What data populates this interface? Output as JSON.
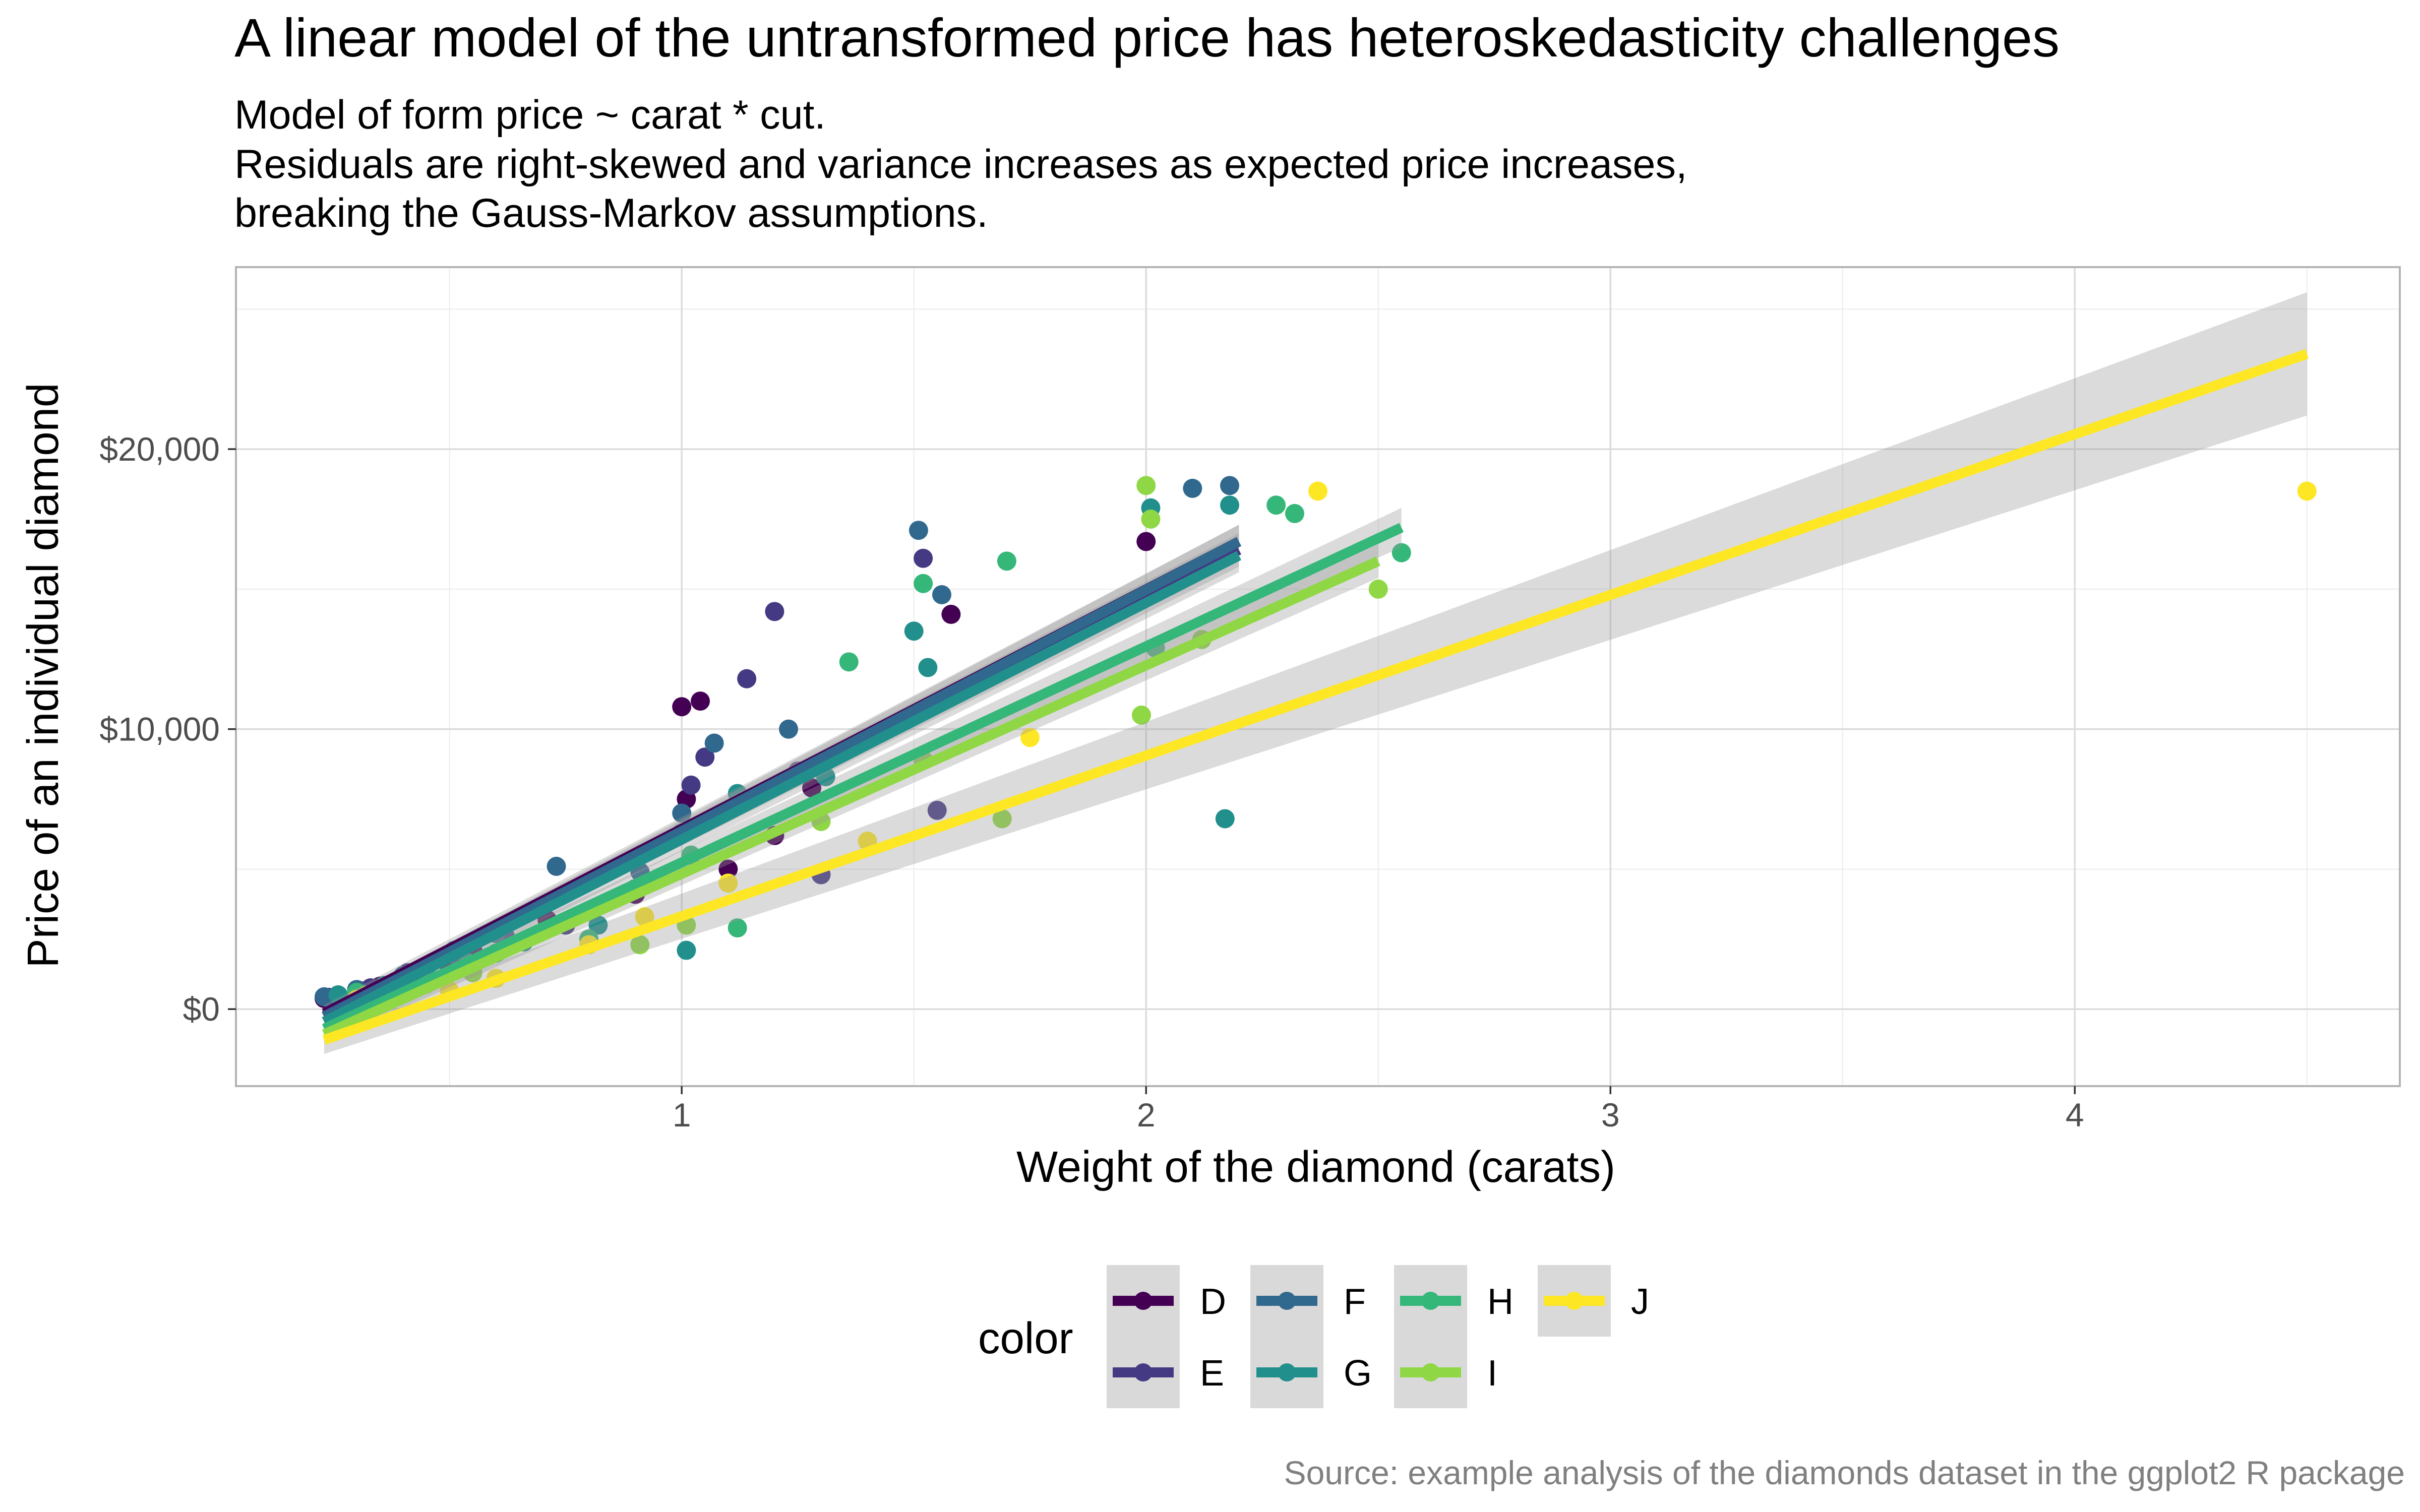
{
  "chart_data": {
    "type": "scatter",
    "title": "A linear model of the untransformed price has heteroskedasticity challenges",
    "subtitle": [
      "Model of form price ~ carat * cut.",
      "Residuals are right-skewed and variance increases as expected price increases,",
      "breaking the Gauss-Markov assumptions."
    ],
    "xlabel": "Weight of the diamond (carats)",
    "ylabel": "Price of an individual diamond",
    "caption": "Source: example analysis of the diamonds dataset in the ggplot2 R package",
    "xlim": [
      0.04,
      4.7
    ],
    "ylim": [
      -2750,
      26500
    ],
    "x_ticks": [
      1,
      2,
      3,
      4
    ],
    "x_tick_labels": [
      "1",
      "2",
      "3",
      "4"
    ],
    "y_ticks": [
      0,
      10000,
      20000
    ],
    "y_tick_labels": [
      "$0",
      "$10,000",
      "$20,000"
    ],
    "grid": true,
    "legend": {
      "title": "color",
      "placement": "bottom",
      "entries": [
        "D",
        "E",
        "F",
        "G",
        "H",
        "I",
        "J"
      ]
    },
    "series": [
      {
        "name": "D",
        "color": "#440154",
        "points": [
          [
            0.23,
            380
          ],
          [
            0.31,
            650
          ],
          [
            0.35,
            820
          ],
          [
            0.42,
            1150
          ],
          [
            0.5,
            1500
          ],
          [
            0.55,
            2100
          ],
          [
            0.71,
            3200
          ],
          [
            0.9,
            4100
          ],
          [
            1.0,
            10800
          ],
          [
            1.01,
            7500
          ],
          [
            1.04,
            11000
          ],
          [
            1.1,
            5000
          ],
          [
            1.2,
            6200
          ],
          [
            1.28,
            7900
          ],
          [
            1.58,
            14100
          ],
          [
            2.0,
            16700
          ]
        ],
        "fit": {
          "x": [
            0.23,
            2.2
          ],
          "y": [
            -150,
            16700
          ],
          "se_low": [
            -450,
            16100
          ],
          "se_high": [
            150,
            17300
          ]
        }
      },
      {
        "name": "E",
        "color": "#443A83",
        "points": [
          [
            0.24,
            420
          ],
          [
            0.33,
            760
          ],
          [
            0.41,
            1300
          ],
          [
            0.52,
            1800
          ],
          [
            0.62,
            2600
          ],
          [
            0.75,
            3000
          ],
          [
            0.9,
            4300
          ],
          [
            1.02,
            8000
          ],
          [
            1.05,
            9000
          ],
          [
            1.14,
            11800
          ],
          [
            1.2,
            14200
          ],
          [
            1.25,
            8500
          ],
          [
            1.3,
            4800
          ],
          [
            1.52,
            16100
          ],
          [
            1.55,
            7100
          ]
        ],
        "fit": {
          "x": [
            0.23,
            2.2
          ],
          "y": [
            -250,
            16400
          ],
          "se_low": [
            -550,
            15800
          ],
          "se_high": [
            50,
            17000
          ]
        }
      },
      {
        "name": "F",
        "color": "#31688E",
        "points": [
          [
            0.23,
            440
          ],
          [
            0.3,
            700
          ],
          [
            0.4,
            1200
          ],
          [
            0.51,
            2100
          ],
          [
            0.6,
            2700
          ],
          [
            0.73,
            5100
          ],
          [
            0.91,
            4900
          ],
          [
            1.0,
            7000
          ],
          [
            1.07,
            9500
          ],
          [
            1.23,
            10000
          ],
          [
            1.51,
            17100
          ],
          [
            1.56,
            14800
          ],
          [
            2.1,
            18600
          ],
          [
            2.18,
            18700
          ]
        ],
        "fit": {
          "x": [
            0.23,
            2.2
          ],
          "y": [
            -280,
            16700
          ],
          "se_low": [
            -580,
            16100
          ],
          "se_high": [
            20,
            17300
          ]
        }
      },
      {
        "name": "G",
        "color": "#21908C",
        "points": [
          [
            0.26,
            510
          ],
          [
            0.36,
            850
          ],
          [
            0.45,
            1250
          ],
          [
            0.54,
            1650
          ],
          [
            0.66,
            2400
          ],
          [
            0.82,
            3000
          ],
          [
            1.0,
            6300
          ],
          [
            1.01,
            2100
          ],
          [
            1.12,
            7700
          ],
          [
            1.31,
            8300
          ],
          [
            1.5,
            13500
          ],
          [
            1.53,
            12200
          ],
          [
            2.01,
            17900
          ],
          [
            2.18,
            18000
          ],
          [
            2.17,
            6800
          ]
        ],
        "fit": {
          "x": [
            0.23,
            2.2
          ],
          "y": [
            -450,
            16200
          ],
          "se_low": [
            -750,
            15600
          ],
          "se_high": [
            -150,
            16800
          ]
        }
      },
      {
        "name": "H",
        "color": "#35B779",
        "points": [
          [
            0.3,
            600
          ],
          [
            0.4,
            950
          ],
          [
            0.6,
            2000
          ],
          [
            0.8,
            2500
          ],
          [
            1.02,
            5500
          ],
          [
            1.12,
            2900
          ],
          [
            1.36,
            12400
          ],
          [
            1.52,
            15200
          ],
          [
            1.7,
            16000
          ],
          [
            2.02,
            12900
          ],
          [
            2.28,
            18000
          ],
          [
            2.32,
            17700
          ],
          [
            2.55,
            16300
          ]
        ],
        "fit": {
          "x": [
            0.23,
            2.55
          ],
          "y": [
            -700,
            17200
          ],
          "se_low": [
            -1000,
            16500
          ],
          "se_high": [
            -400,
            17900
          ]
        }
      },
      {
        "name": "I",
        "color": "#8FD744",
        "points": [
          [
            0.32,
            500
          ],
          [
            0.45,
            900
          ],
          [
            0.55,
            1300
          ],
          [
            0.91,
            2300
          ],
          [
            1.01,
            3000
          ],
          [
            1.3,
            6700
          ],
          [
            1.52,
            8900
          ],
          [
            1.69,
            6800
          ],
          [
            1.99,
            10500
          ],
          [
            2.0,
            18700
          ],
          [
            2.01,
            17500
          ],
          [
            2.12,
            13200
          ],
          [
            2.5,
            15000
          ]
        ],
        "fit": {
          "x": [
            0.23,
            2.5
          ],
          "y": [
            -900,
            16000
          ],
          "se_low": [
            -1200,
            15400
          ],
          "se_high": [
            -600,
            16600
          ]
        }
      },
      {
        "name": "J",
        "color": "#FDE725",
        "points": [
          [
            0.3,
            350
          ],
          [
            0.5,
            650
          ],
          [
            0.6,
            1100
          ],
          [
            0.8,
            2300
          ],
          [
            0.92,
            3300
          ],
          [
            1.1,
            4500
          ],
          [
            1.4,
            6000
          ],
          [
            1.75,
            9700
          ],
          [
            2.37,
            18500
          ],
          [
            4.5,
            18500
          ]
        ],
        "fit": {
          "x": [
            0.23,
            4.5
          ],
          "y": [
            -1100,
            23400
          ],
          "se_low": [
            -1600,
            21200
          ],
          "se_high": [
            -600,
            25600
          ]
        }
      }
    ]
  }
}
